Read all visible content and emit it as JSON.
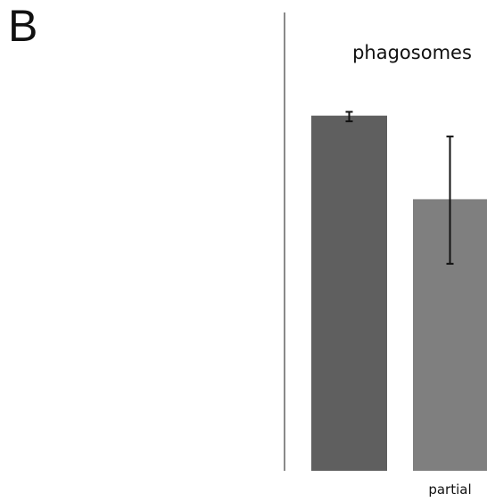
{
  "panel_label": "B",
  "chart_data": {
    "type": "bar",
    "title": "phagosomes",
    "categories": [
      "",
      "partial"
    ],
    "values": [
      0.935,
      0.715
    ],
    "error_bars": [
      {
        "low": 0.92,
        "high": 0.945
      },
      {
        "low": 0.545,
        "high": 0.88
      }
    ],
    "bar_colors": [
      "#5f5f5f",
      "#7f7f7f"
    ],
    "error_color": "#111111",
    "axis_color": "#8a8a8a",
    "ylim": [
      0,
      1
    ],
    "grid": false
  }
}
